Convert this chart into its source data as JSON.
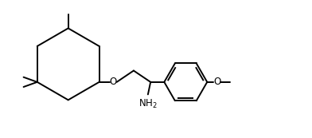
{
  "bg_color": "#ffffff",
  "line_color": "#000000",
  "lw": 1.4,
  "fs": 8.5,
  "fig_w": 3.92,
  "fig_h": 1.73,
  "xlim": [
    0.0,
    9.5
  ],
  "ylim": [
    0.3,
    4.5
  ]
}
